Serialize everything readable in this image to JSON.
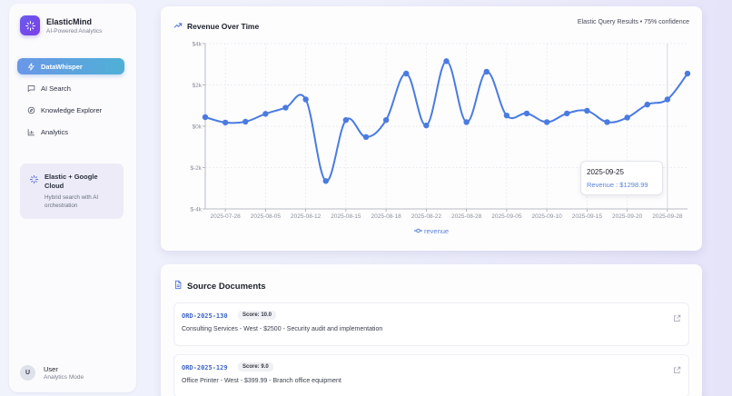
{
  "sidebar": {
    "brand": {
      "title": "ElasticMind",
      "subtitle": "AI-Powered Analytics",
      "icon": "sparkles-icon"
    },
    "nav": [
      {
        "label": "DataWhisper",
        "icon": "zap-icon",
        "active": true
      },
      {
        "label": "AI Search",
        "icon": "chat-icon",
        "active": false
      },
      {
        "label": "Knowledge Explorer",
        "icon": "compass-icon",
        "active": false
      },
      {
        "label": "Analytics",
        "icon": "bar-chart-icon",
        "active": false
      }
    ],
    "promo": {
      "title": "Elastic + Google Cloud",
      "description": "Hybrid search with AI orchestration",
      "icon": "sparkles-icon"
    },
    "user": {
      "initial": "U",
      "name": "User",
      "mode": "Analytics Mode"
    }
  },
  "chart_card": {
    "title": "Revenue Over Time",
    "meta": "Elastic Query Results • 75% confidence",
    "legend": "revenue",
    "tooltip": {
      "date": "2025-09-25",
      "label": "Revenue : $1298.99"
    }
  },
  "chart_data": {
    "type": "line",
    "title": "Revenue Over Time",
    "xlabel": "",
    "ylabel": "",
    "ylim": [
      -4000,
      4000
    ],
    "yticks": [
      "$-4k",
      "$-2k",
      "$0k",
      "$2k",
      "$4k"
    ],
    "xtick_labels": [
      "2025-07-28",
      "2025-08-05",
      "2025-08-12",
      "2025-08-15",
      "2025-08-18",
      "2025-08-22",
      "2025-08-28",
      "2025-09-05",
      "2025-09-10",
      "2025-09-15",
      "2025-09-20",
      "2025-09-28"
    ],
    "grid": true,
    "legend_position": "bottom",
    "series": [
      {
        "name": "revenue",
        "color": "#4a7be0",
        "values": [
          440,
          180,
          220,
          600,
          900,
          1300,
          -2650,
          300,
          -520,
          300,
          2550,
          40,
          3150,
          200,
          2640,
          520,
          620,
          200,
          620,
          750,
          200,
          420,
          1050,
          1298.99,
          2550
        ]
      }
    ]
  },
  "docs_card": {
    "title": "Source Documents",
    "documents": [
      {
        "id": "ORD-2025-130",
        "score": "Score: 10.0",
        "description": "Consulting Services - West - $2500 - Security audit and implementation"
      },
      {
        "id": "ORD-2025-129",
        "score": "Score: 9.0",
        "description": "Office Printer - West - $399.99 - Branch office equipment"
      }
    ]
  },
  "colors": {
    "accent": "#4a7be0",
    "brand": "#6a5cf0",
    "active_nav_start": "#6a97e8",
    "active_nav_end": "#4fb0d6"
  }
}
